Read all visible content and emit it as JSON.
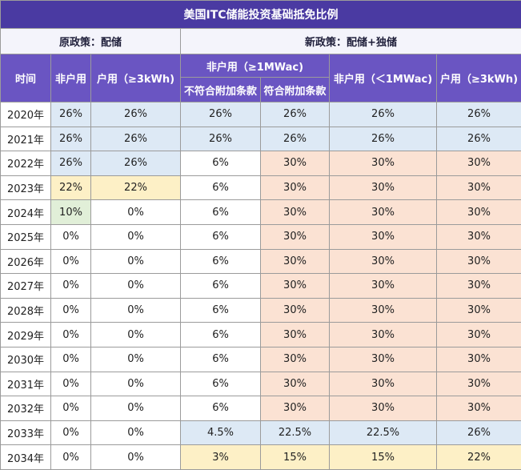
{
  "title": "美国ITC储能投资基础抵免比例",
  "groups": {
    "old": "原政策：配储",
    "new": "新政策：配储+独储"
  },
  "headers": {
    "time": "时间",
    "old_non_res": "非户用",
    "old_res": "户用（≥3kWh)",
    "new_non_res_large": "非户用（≥1MWac)",
    "new_non_res_large_noncompliant": "不符合附加条款",
    "new_non_res_large_compliant": "符合附加条款",
    "new_non_res_small": "非户用（＜1MWac)",
    "new_res": "户用（≥3kWh)"
  },
  "rows": [
    {
      "year": "2020年",
      "cells": [
        [
          "26%",
          "blue"
        ],
        [
          "26%",
          "blue"
        ],
        [
          "26%",
          "blue"
        ],
        [
          "26%",
          "blue"
        ],
        [
          "26%",
          "blue"
        ],
        [
          "26%",
          "blue"
        ]
      ]
    },
    {
      "year": "2021年",
      "cells": [
        [
          "26%",
          "blue"
        ],
        [
          "26%",
          "blue"
        ],
        [
          "26%",
          "blue"
        ],
        [
          "26%",
          "blue"
        ],
        [
          "26%",
          "blue"
        ],
        [
          "26%",
          "blue"
        ]
      ]
    },
    {
      "year": "2022年",
      "cells": [
        [
          "26%",
          "blue"
        ],
        [
          "26%",
          "blue"
        ],
        [
          "6%",
          "white"
        ],
        [
          "30%",
          "orange"
        ],
        [
          "30%",
          "orange"
        ],
        [
          "30%",
          "orange"
        ]
      ]
    },
    {
      "year": "2023年",
      "cells": [
        [
          "22%",
          "yellow"
        ],
        [
          "22%",
          "yellow"
        ],
        [
          "6%",
          "white"
        ],
        [
          "30%",
          "orange"
        ],
        [
          "30%",
          "orange"
        ],
        [
          "30%",
          "orange"
        ]
      ]
    },
    {
      "year": "2024年",
      "cells": [
        [
          "10%",
          "green"
        ],
        [
          "0%",
          "white"
        ],
        [
          "6%",
          "white"
        ],
        [
          "30%",
          "orange"
        ],
        [
          "30%",
          "orange"
        ],
        [
          "30%",
          "orange"
        ]
      ]
    },
    {
      "year": "2025年",
      "cells": [
        [
          "0%",
          "white"
        ],
        [
          "0%",
          "white"
        ],
        [
          "6%",
          "white"
        ],
        [
          "30%",
          "orange"
        ],
        [
          "30%",
          "orange"
        ],
        [
          "30%",
          "orange"
        ]
      ]
    },
    {
      "year": "2026年",
      "cells": [
        [
          "0%",
          "white"
        ],
        [
          "0%",
          "white"
        ],
        [
          "6%",
          "white"
        ],
        [
          "30%",
          "orange"
        ],
        [
          "30%",
          "orange"
        ],
        [
          "30%",
          "orange"
        ]
      ]
    },
    {
      "year": "2027年",
      "cells": [
        [
          "0%",
          "white"
        ],
        [
          "0%",
          "white"
        ],
        [
          "6%",
          "white"
        ],
        [
          "30%",
          "orange"
        ],
        [
          "30%",
          "orange"
        ],
        [
          "30%",
          "orange"
        ]
      ]
    },
    {
      "year": "2028年",
      "cells": [
        [
          "0%",
          "white"
        ],
        [
          "0%",
          "white"
        ],
        [
          "6%",
          "white"
        ],
        [
          "30%",
          "orange"
        ],
        [
          "30%",
          "orange"
        ],
        [
          "30%",
          "orange"
        ]
      ]
    },
    {
      "year": "2029年",
      "cells": [
        [
          "0%",
          "white"
        ],
        [
          "0%",
          "white"
        ],
        [
          "6%",
          "white"
        ],
        [
          "30%",
          "orange"
        ],
        [
          "30%",
          "orange"
        ],
        [
          "30%",
          "orange"
        ]
      ]
    },
    {
      "year": "2030年",
      "cells": [
        [
          "0%",
          "white"
        ],
        [
          "0%",
          "white"
        ],
        [
          "6%",
          "white"
        ],
        [
          "30%",
          "orange"
        ],
        [
          "30%",
          "orange"
        ],
        [
          "30%",
          "orange"
        ]
      ]
    },
    {
      "year": "2031年",
      "cells": [
        [
          "0%",
          "white"
        ],
        [
          "0%",
          "white"
        ],
        [
          "6%",
          "white"
        ],
        [
          "30%",
          "orange"
        ],
        [
          "30%",
          "orange"
        ],
        [
          "30%",
          "orange"
        ]
      ]
    },
    {
      "year": "2032年",
      "cells": [
        [
          "0%",
          "white"
        ],
        [
          "0%",
          "white"
        ],
        [
          "6%",
          "white"
        ],
        [
          "30%",
          "orange"
        ],
        [
          "30%",
          "orange"
        ],
        [
          "30%",
          "orange"
        ]
      ]
    },
    {
      "year": "2033年",
      "cells": [
        [
          "0%",
          "white"
        ],
        [
          "0%",
          "white"
        ],
        [
          "4.5%",
          "blue"
        ],
        [
          "22.5%",
          "blue"
        ],
        [
          "22.5%",
          "blue"
        ],
        [
          "26%",
          "blue"
        ]
      ]
    },
    {
      "year": "2034年",
      "cells": [
        [
          "0%",
          "white"
        ],
        [
          "0%",
          "white"
        ],
        [
          "3%",
          "yellow"
        ],
        [
          "15%",
          "yellow"
        ],
        [
          "15%",
          "yellow"
        ],
        [
          "22%",
          "yellow"
        ]
      ]
    }
  ],
  "colors": {
    "title_bg": "#4a3aa2",
    "header_bg": "#6a55c2",
    "blue": "#dde9f5",
    "orange": "#fbe2d3",
    "yellow": "#fdf0c6",
    "green": "#e1efd8",
    "white": "#ffffff"
  }
}
